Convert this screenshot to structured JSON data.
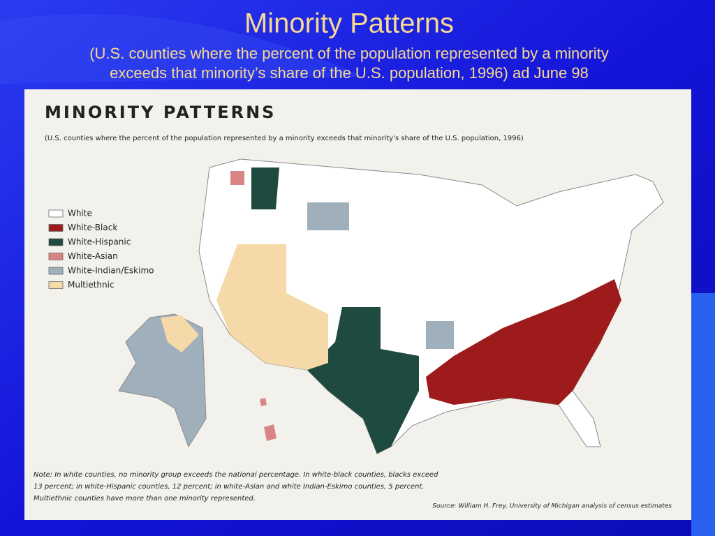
{
  "slide": {
    "title": "Minority Patterns",
    "subtitle_lines": [
      "(U.S. counties where the percent of the population represented by a minority",
      "exceeds that minority’s share of the U.S. population, 1996) ad June 98"
    ]
  },
  "map": {
    "title": "MINORITY PATTERNS",
    "subtitle": "(U.S. counties where the percent of the population represented by a minority exceeds that minority's share of the U.S. population, 1996)",
    "legend": [
      {
        "label": "White",
        "color": "#ffffff"
      },
      {
        "label": "White-Black",
        "color": "#9e1b1b"
      },
      {
        "label": "White-Hispanic",
        "color": "#1f4a40"
      },
      {
        "label": "White-Asian",
        "color": "#d98585"
      },
      {
        "label": "White-Indian/Eskimo",
        "color": "#9fb0bc"
      },
      {
        "label": "Multiethnic",
        "color": "#f5d9a8"
      }
    ],
    "note_lines": [
      "Note: In white counties, no minority group exceeds the national percentage. In white-black counties, blacks exceed",
      "13 percent; in white-Hispanic counties, 12 percent; in white-Asian and white Indian-Eskimo counties, 5 percent.",
      "Multiethnic counties have more than one minority represented."
    ],
    "source": "Source: William H. Frey, University of Michigan analysis of census estimates"
  }
}
